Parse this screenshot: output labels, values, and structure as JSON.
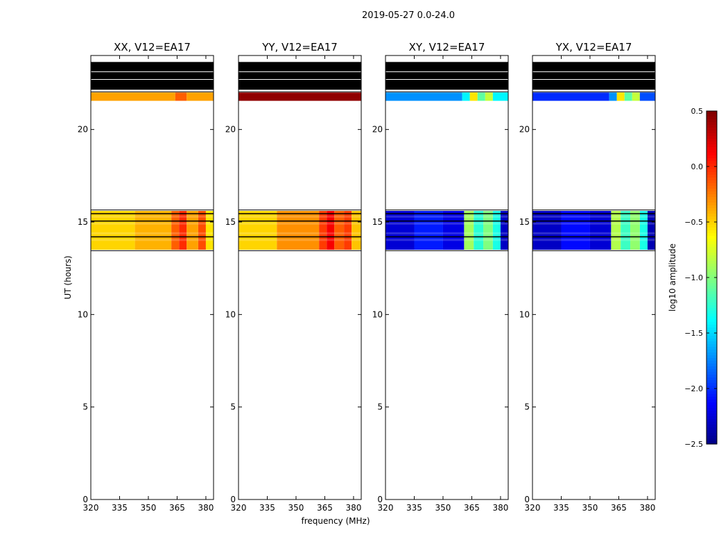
{
  "figure": {
    "suptitle": "2019-05-27 0.0-24.0",
    "xlabel": "frequency (MHz)",
    "ylabel": "UT (hours)"
  },
  "colors": {
    "background": "#ffffff",
    "flagged": "#000000",
    "colormap": "jet"
  },
  "chart_data": {
    "type": "heatmap",
    "xlim": [
      320,
      384
    ],
    "ylim": [
      0,
      24
    ],
    "xticks": [
      320,
      335,
      350,
      365,
      380
    ],
    "yticks": [
      0,
      5,
      10,
      15,
      20
    ],
    "colorbar": {
      "label": "log10 amplitude",
      "range": [
        -2.5,
        0.5
      ],
      "ticks": [
        "0.5",
        "0.0",
        "−0.5",
        "−1.0",
        "−1.5",
        "−2.0",
        "−2.5"
      ],
      "tick_values": [
        0.5,
        0.0,
        -0.5,
        -1.0,
        -1.5,
        -2.0,
        -2.5
      ],
      "colormap": "jet"
    },
    "panels": [
      {
        "title": "XX, V12=EA17",
        "flagged_black_rows": [
          [
            22.15,
            23.65
          ]
        ],
        "data_bands": [
          {
            "ut_range": [
              21.55,
              22.0
            ],
            "freq_segments": [
              [
                320,
                364,
                -0.35
              ],
              [
                364,
                370,
                -0.15
              ],
              [
                370,
                384,
                -0.35
              ]
            ]
          },
          {
            "ut_range": [
              13.5,
              15.6
            ],
            "freq_segments": [
              [
                320,
                343,
                -0.5
              ],
              [
                343,
                362,
                -0.4
              ],
              [
                362,
                366,
                -0.15
              ],
              [
                366,
                370,
                0.0
              ],
              [
                370,
                376,
                -0.35
              ],
              [
                376,
                380,
                -0.1
              ],
              [
                380,
                384,
                -0.55
              ]
            ]
          }
        ]
      },
      {
        "title": "YY, V12=EA17",
        "flagged_black_rows": [
          [
            22.15,
            23.65
          ]
        ],
        "data_bands": [
          {
            "ut_range": [
              21.55,
              22.0
            ],
            "freq_segments": [
              [
                320,
                384,
                0.45
              ]
            ]
          },
          {
            "ut_range": [
              13.5,
              15.6
            ],
            "freq_segments": [
              [
                320,
                340,
                -0.5
              ],
              [
                340,
                362,
                -0.3
              ],
              [
                362,
                366,
                -0.05
              ],
              [
                366,
                370,
                0.15
              ],
              [
                370,
                375,
                -0.15
              ],
              [
                375,
                379,
                -0.05
              ],
              [
                379,
                384,
                -0.45
              ]
            ]
          }
        ]
      },
      {
        "title": "XY, V12=EA17",
        "flagged_black_rows": [
          [
            22.15,
            23.65
          ]
        ],
        "data_bands": [
          {
            "ut_range": [
              21.55,
              22.0
            ],
            "freq_segments": [
              [
                320,
                360,
                -1.7
              ],
              [
                360,
                364,
                -1.4
              ],
              [
                364,
                368,
                -0.55
              ],
              [
                368,
                372,
                -1.1
              ],
              [
                372,
                376,
                -0.8
              ],
              [
                376,
                384,
                -1.4
              ]
            ]
          },
          {
            "ut_range": [
              13.5,
              15.6
            ],
            "freq_segments": [
              [
                320,
                335,
                -2.25
              ],
              [
                335,
                350,
                -2.05
              ],
              [
                350,
                361,
                -2.2
              ],
              [
                361,
                366,
                -0.9
              ],
              [
                366,
                371,
                -1.25
              ],
              [
                371,
                376,
                -1.0
              ],
              [
                376,
                380,
                -1.3
              ],
              [
                380,
                384,
                -2.3
              ]
            ]
          }
        ]
      },
      {
        "title": "YX, V12=EA17",
        "flagged_black_rows": [
          [
            22.15,
            23.65
          ]
        ],
        "data_bands": [
          {
            "ut_range": [
              21.55,
              22.0
            ],
            "freq_segments": [
              [
                320,
                360,
                -2.0
              ],
              [
                360,
                364,
                -1.7
              ],
              [
                364,
                368,
                -0.55
              ],
              [
                368,
                372,
                -1.1
              ],
              [
                372,
                376,
                -0.8
              ],
              [
                376,
                384,
                -1.9
              ]
            ]
          },
          {
            "ut_range": [
              13.5,
              15.6
            ],
            "freq_segments": [
              [
                320,
                335,
                -2.3
              ],
              [
                335,
                350,
                -2.1
              ],
              [
                350,
                361,
                -2.25
              ],
              [
                361,
                366,
                -0.85
              ],
              [
                366,
                371,
                -1.2
              ],
              [
                371,
                376,
                -0.95
              ],
              [
                376,
                380,
                -1.3
              ],
              [
                380,
                384,
                -2.35
              ]
            ]
          }
        ]
      }
    ]
  }
}
